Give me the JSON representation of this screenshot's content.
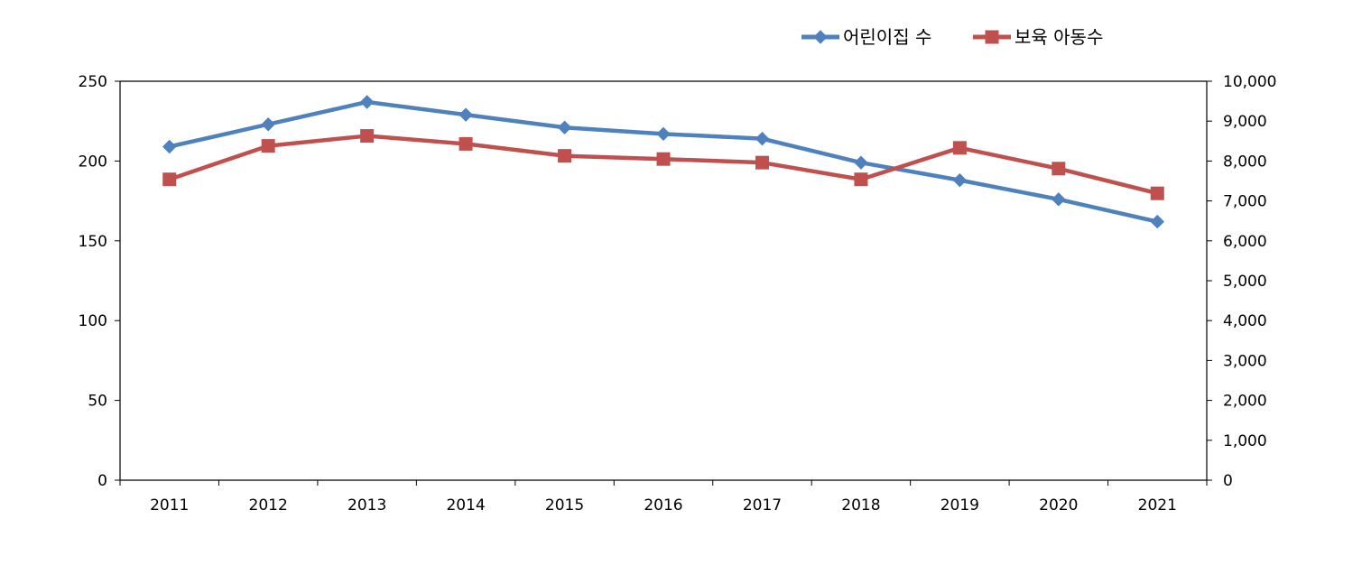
{
  "chart_data": {
    "type": "line",
    "categories": [
      "2011",
      "2012",
      "2013",
      "2014",
      "2015",
      "2016",
      "2017",
      "2018",
      "2019",
      "2020",
      "2021"
    ],
    "y_left": {
      "ylim": [
        0,
        250
      ],
      "ticks": [
        "0",
        "50",
        "100",
        "150",
        "200",
        "250"
      ]
    },
    "y_right": {
      "ylim": [
        0,
        10000
      ],
      "ticks": [
        "0",
        "1,000",
        "2,000",
        "3,000",
        "4,000",
        "5,000",
        "6,000",
        "7,000",
        "8,000",
        "9,000",
        "10,000"
      ]
    },
    "series": [
      {
        "name": "어린이집 수",
        "axis": "left",
        "color": "#4F81BD",
        "marker": "diamond",
        "values": [
          209,
          223,
          237,
          229,
          221,
          217,
          214,
          199,
          188,
          176,
          162
        ]
      },
      {
        "name": "보육 아동수",
        "axis": "right",
        "color": "#C0504D",
        "marker": "square",
        "values": [
          7540,
          8380,
          8630,
          8430,
          8130,
          8050,
          7960,
          7540,
          8330,
          7810,
          7190
        ]
      }
    ],
    "legend": "top-right",
    "grid": false
  }
}
